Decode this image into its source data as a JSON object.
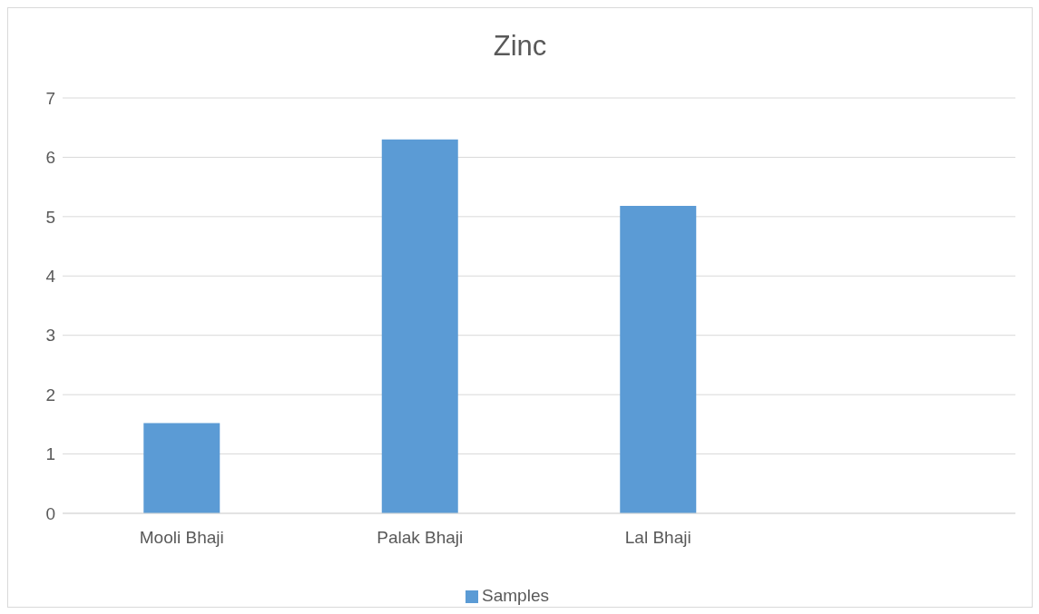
{
  "chart_data": {
    "type": "bar",
    "title": "Zinc",
    "categories": [
      "Mooli Bhaji",
      "Palak Bhaji",
      "Lal Bhaji",
      null
    ],
    "series": [
      {
        "name": "Samples",
        "color": "#5b9bd5",
        "values": [
          1.52,
          6.3,
          5.18,
          null
        ]
      }
    ],
    "ylim": [
      0,
      7
    ],
    "yticks": [
      0,
      1,
      2,
      3,
      4,
      5,
      6,
      7
    ],
    "grid": "y",
    "legend": "bottom"
  }
}
